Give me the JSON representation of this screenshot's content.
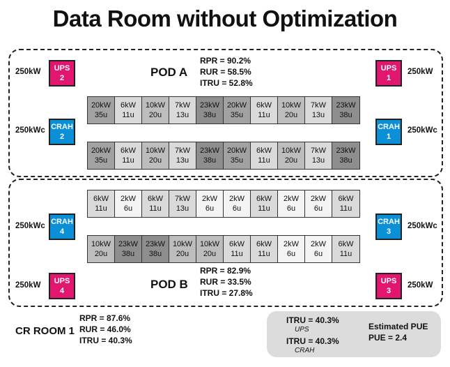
{
  "title": "Data Room without Optimization",
  "pod_a": {
    "label": "POD A",
    "metrics": [
      "RPR = 90.2%",
      "RUR = 58.5%",
      "ITRU = 52.8%"
    ],
    "ups_left": {
      "name": "UPS",
      "num": "2",
      "cap": "250kW"
    },
    "ups_right": {
      "name": "UPS",
      "num": "1",
      "cap": "250kW"
    },
    "crah_left": {
      "name": "CRAH",
      "num": "2",
      "cap": "250kWc"
    },
    "crah_right": {
      "name": "CRAH",
      "num": "1",
      "cap": "250kWc"
    },
    "row1": [
      {
        "kw": "20kW",
        "u": "35u"
      },
      {
        "kw": "6kW",
        "u": "11u"
      },
      {
        "kw": "10kW",
        "u": "20u"
      },
      {
        "kw": "7kW",
        "u": "13u"
      },
      {
        "kw": "23kW",
        "u": "38u"
      },
      {
        "kw": "20kW",
        "u": "35u"
      },
      {
        "kw": "6kW",
        "u": "11u"
      },
      {
        "kw": "10kW",
        "u": "20u"
      },
      {
        "kw": "7kW",
        "u": "13u"
      },
      {
        "kw": "23kW",
        "u": "38u"
      }
    ],
    "row2": [
      {
        "kw": "20kW",
        "u": "35u"
      },
      {
        "kw": "6kW",
        "u": "11u"
      },
      {
        "kw": "10kW",
        "u": "20u"
      },
      {
        "kw": "7kW",
        "u": "13u"
      },
      {
        "kw": "23kW",
        "u": "38u"
      },
      {
        "kw": "20kW",
        "u": "35u"
      },
      {
        "kw": "6kW",
        "u": "11u"
      },
      {
        "kw": "10kW",
        "u": "20u"
      },
      {
        "kw": "7kW",
        "u": "13u"
      },
      {
        "kw": "23kW",
        "u": "38u"
      }
    ]
  },
  "pod_b": {
    "label": "POD B",
    "metrics": [
      "RPR = 82.9%",
      "RUR = 33.5%",
      "ITRU = 27.8%"
    ],
    "ups_left": {
      "name": "UPS",
      "num": "4",
      "cap": "250kW"
    },
    "ups_right": {
      "name": "UPS",
      "num": "3",
      "cap": "250kW"
    },
    "crah_left": {
      "name": "CRAH",
      "num": "4",
      "cap": "250kWc"
    },
    "crah_right": {
      "name": "CRAH",
      "num": "3",
      "cap": "250kWc"
    },
    "row1": [
      {
        "kw": "6kW",
        "u": "11u"
      },
      {
        "kw": "2kW",
        "u": "6u"
      },
      {
        "kw": "6kW",
        "u": "11u"
      },
      {
        "kw": "7kW",
        "u": "13u"
      },
      {
        "kw": "2kW",
        "u": "6u"
      },
      {
        "kw": "2kW",
        "u": "6u"
      },
      {
        "kw": "6kW",
        "u": "11u"
      },
      {
        "kw": "2kW",
        "u": "6u"
      },
      {
        "kw": "2kW",
        "u": "6u"
      },
      {
        "kw": "6kW",
        "u": "11u"
      }
    ],
    "row2": [
      {
        "kw": "10kW",
        "u": "20u"
      },
      {
        "kw": "23kW",
        "u": "38u"
      },
      {
        "kw": "23kW",
        "u": "38u"
      },
      {
        "kw": "10kW",
        "u": "20u"
      },
      {
        "kw": "10kW",
        "u": "20u"
      },
      {
        "kw": "6kW",
        "u": "11u"
      },
      {
        "kw": "6kW",
        "u": "11u"
      },
      {
        "kw": "2kW",
        "u": "6u"
      },
      {
        "kw": "2kW",
        "u": "6u"
      },
      {
        "kw": "6kW",
        "u": "11u"
      }
    ]
  },
  "room": {
    "label": "CR ROOM 1",
    "metrics": [
      "RPR = 87.6%",
      "RUR = 46.0%",
      "ITRU = 40.3%"
    ]
  },
  "summary": {
    "itru_ups": "ITRU = 40.3%",
    "ups_caption": "UPS",
    "itru_crah": "ITRU = 40.3%",
    "crah_caption": "CRAH",
    "pue_label": "Estimated PUE",
    "pue_value": "PUE = 2.4"
  },
  "colors": {
    "ups": "#e0166f",
    "crah": "#0b8fd6"
  }
}
